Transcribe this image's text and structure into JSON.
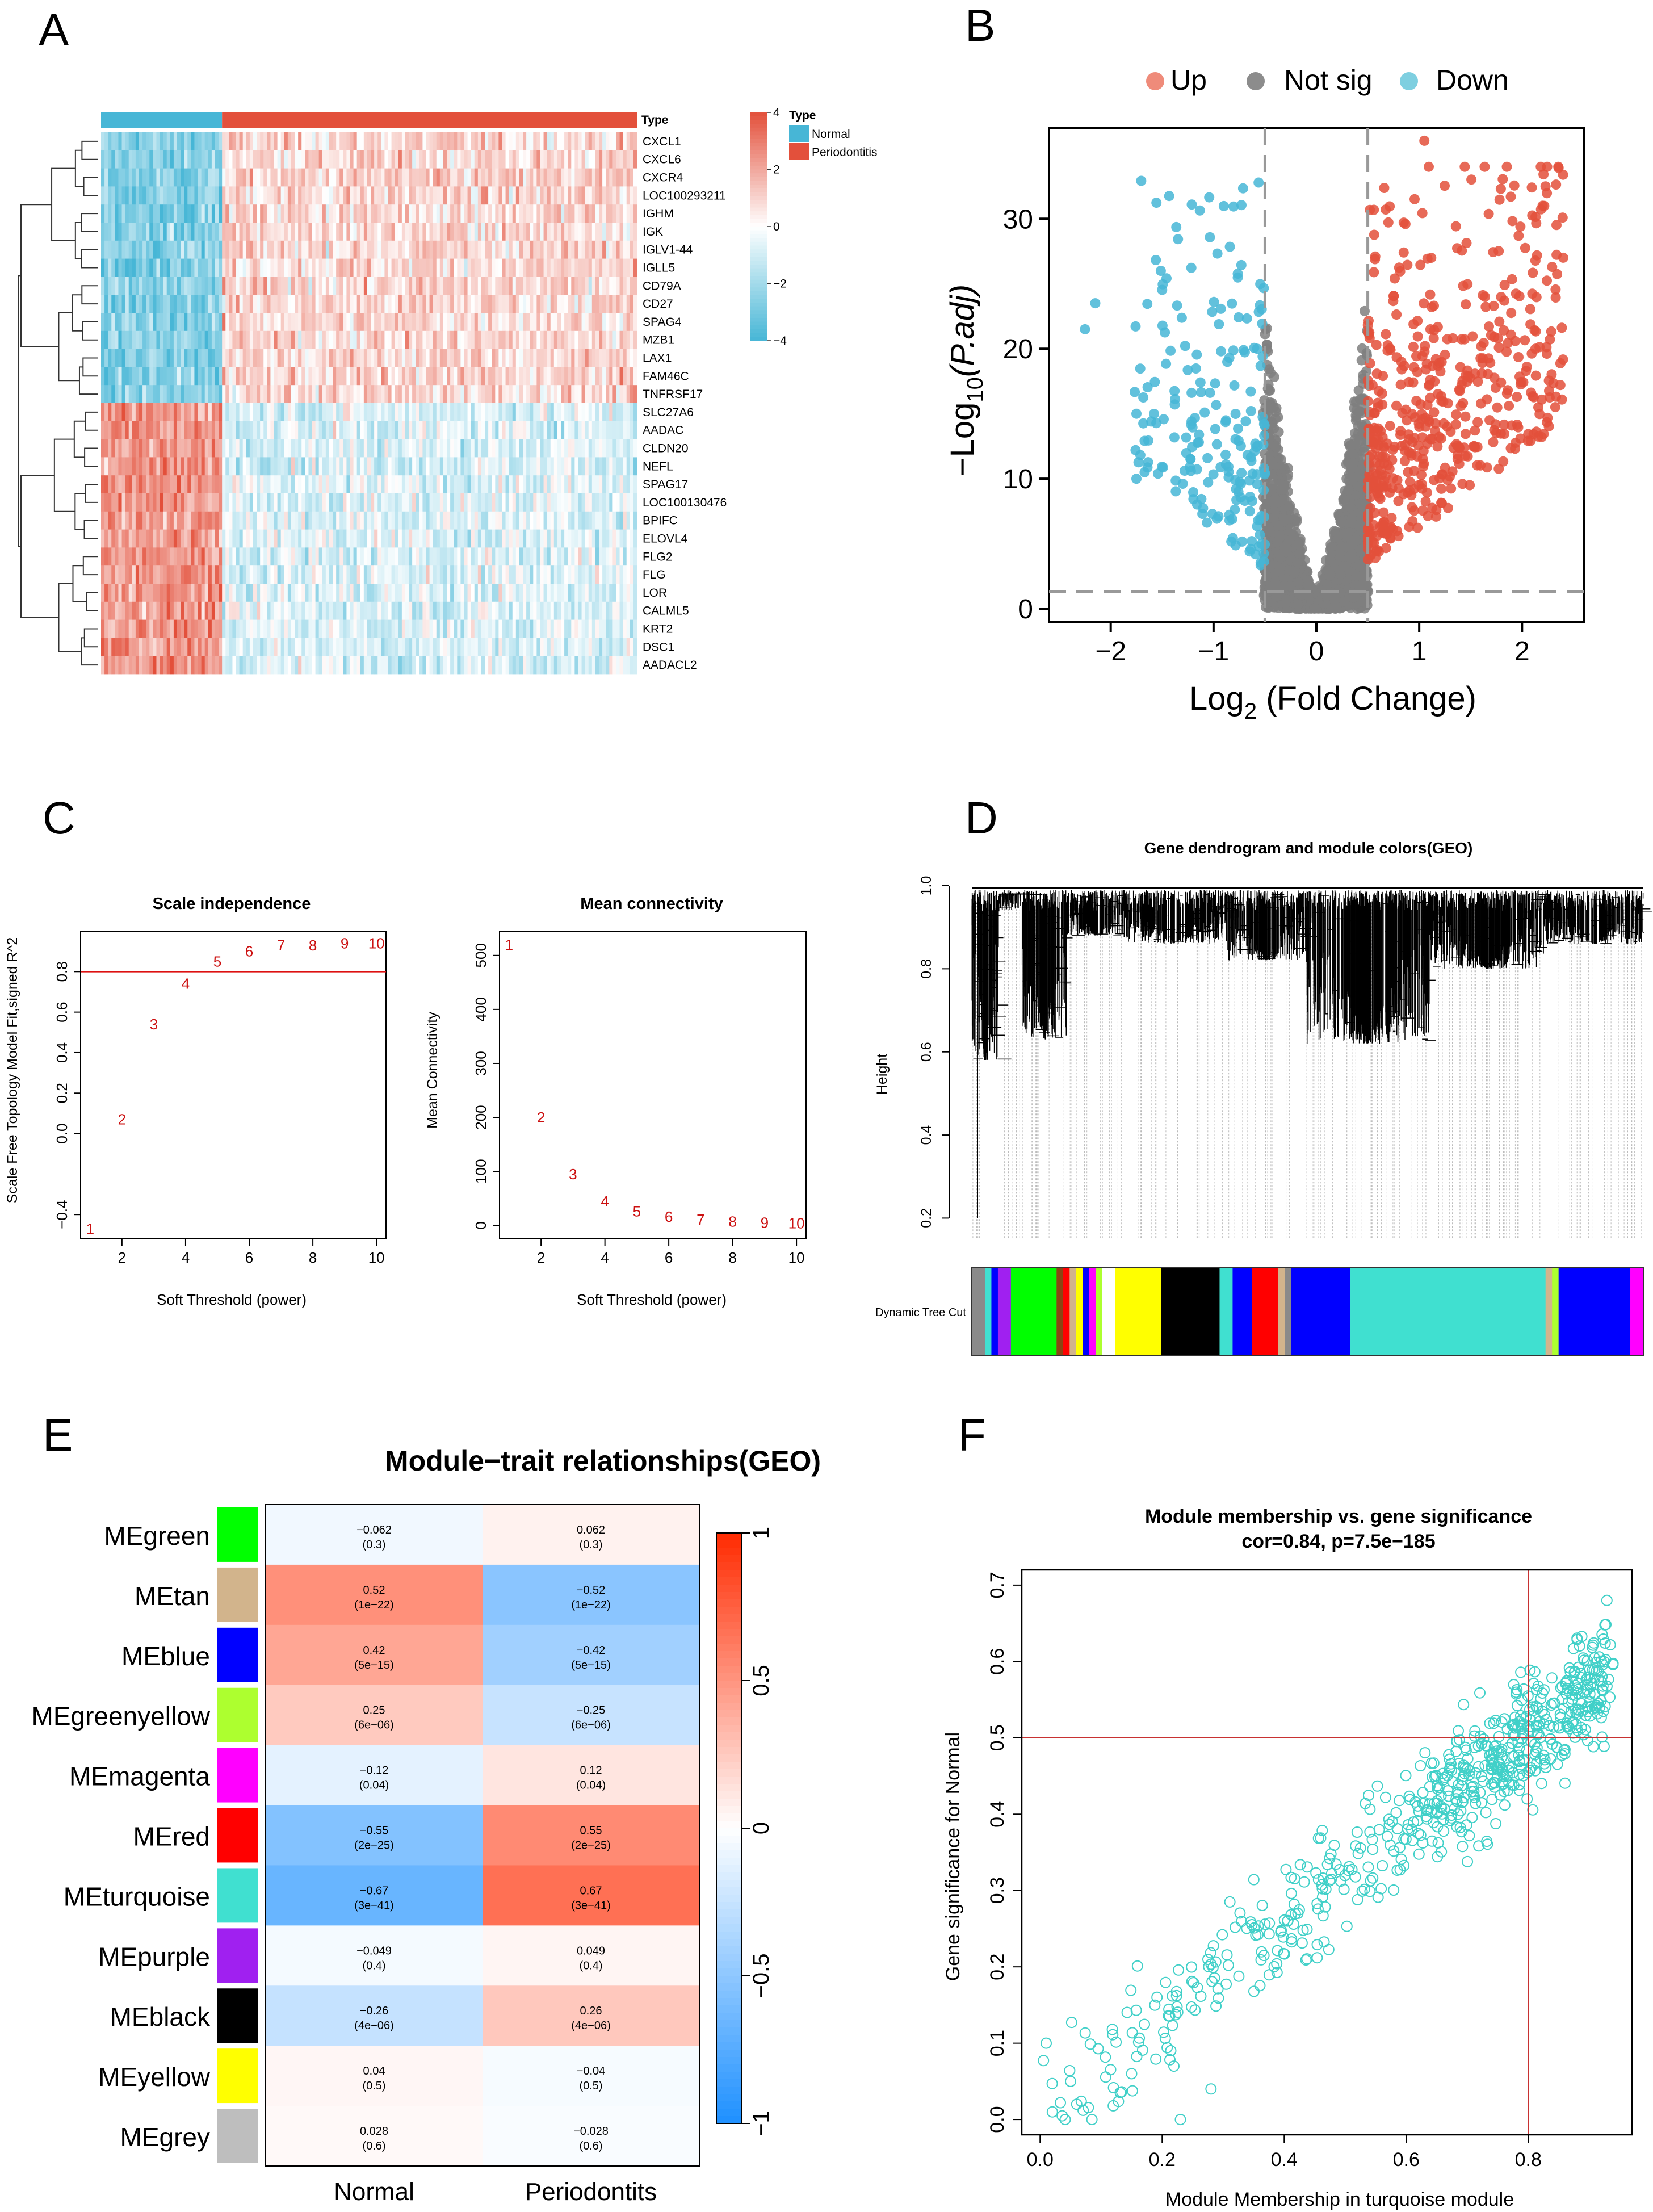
{
  "panel_labels": [
    "A",
    "B",
    "C",
    "D",
    "E",
    "F"
  ],
  "chart_data": [
    {
      "panel": "A",
      "type": "heatmap",
      "annotation_label": "Type",
      "legend_title": "Type",
      "groups": [
        {
          "name": "Normal",
          "color": "#47b6d6",
          "n": 69
        },
        {
          "name": "Periodontitis",
          "color": "#e3503b",
          "n": 241
        }
      ],
      "genes_up_in_periodontitis": [
        "CXCL1",
        "CXCL6",
        "CXCR4",
        "LOC100293211",
        "IGHM",
        "IGK",
        "IGLV1-44",
        "IGLL5",
        "CD79A",
        "CD27",
        "SPAG4",
        "MZB1",
        "LAX1",
        "FAM46C",
        "TNFRSF17"
      ],
      "genes_down_in_periodontitis": [
        "SLC27A6",
        "AADAC",
        "CLDN20",
        "NEFL",
        "SPAG17",
        "LOC100130476",
        "BPIFC",
        "ELOVL4",
        "FLG2",
        "FLG",
        "LOR",
        "CALML5",
        "KRT2",
        "DSC1",
        "AADACL2"
      ],
      "color_scale": {
        "ticks": [
          4,
          2,
          0,
          -2,
          -4
        ],
        "tick_labels": [
          "4",
          "2",
          "0",
          "−2",
          "−4"
        ],
        "high": "#e3503b",
        "mid": "#ffffff",
        "low": "#47b6d6"
      }
    },
    {
      "panel": "B",
      "type": "scatter",
      "legend": [
        {
          "name": "Up",
          "color": "#ef8b7a"
        },
        {
          "name": "Not sig",
          "color": "#8c8c8c"
        },
        {
          "name": "Down",
          "color": "#7ecfe0"
        }
      ],
      "point_colors": {
        "up": "#e3503b",
        "ns": "#7f7f7f",
        "down": "#47b6d6"
      },
      "xlabel_main": "Log",
      "xlabel_sub": "2",
      "xlabel_rest": " (Fold Change)",
      "ylabel_main": "−Log",
      "ylabel_sub": "10",
      "ylabel_rest": "(P.adj)",
      "xlim": [
        -2.6,
        2.6
      ],
      "ylim": [
        -1,
        37
      ],
      "xticks": [
        -2,
        -1,
        0,
        1,
        2
      ],
      "xtick_labels": [
        "−2",
        "−1",
        "0",
        "1",
        "2"
      ],
      "yticks": [
        0,
        10,
        20,
        30
      ],
      "ytick_labels": [
        "0",
        "10",
        "20",
        "30"
      ],
      "thresholds": {
        "logfc": [
          -0.5,
          0.5
        ],
        "y": 1.3
      }
    },
    {
      "panel": "C-left",
      "type": "scatter",
      "title": "Scale independence",
      "xlabel": "Soft Threshold (power)",
      "ylabel": "Scale Free Topology Model Fit,signed R^2",
      "x": [
        1,
        2,
        3,
        4,
        5,
        6,
        7,
        8,
        9,
        10
      ],
      "y": [
        -0.47,
        0.07,
        0.54,
        0.74,
        0.85,
        0.9,
        0.93,
        0.93,
        0.94,
        0.94
      ],
      "xlim": [
        0.7,
        10.3
      ],
      "ylim": [
        -0.52,
        1.0
      ],
      "xticks": [
        2,
        4,
        6,
        8,
        10
      ],
      "yticks": [
        -0.4,
        0.0,
        0.2,
        0.4,
        0.6,
        0.8
      ],
      "ytick_labels": [
        "−0.4",
        "0.0",
        "0.2",
        "0.4",
        "0.6",
        "0.8"
      ],
      "hline": 0.8
    },
    {
      "panel": "C-right",
      "type": "scatter",
      "title": "Mean connectivity",
      "xlabel": "Soft Threshold (power)",
      "ylabel": "Mean Connectivity",
      "x": [
        1,
        2,
        3,
        4,
        5,
        6,
        7,
        8,
        9,
        10
      ],
      "y": [
        520,
        200,
        95,
        45,
        26,
        16,
        11,
        7,
        5,
        4
      ],
      "xlim": [
        0.7,
        10.3
      ],
      "ylim": [
        -25,
        545
      ],
      "xticks": [
        2,
        4,
        6,
        8,
        10
      ],
      "yticks": [
        0,
        100,
        200,
        300,
        400,
        500
      ]
    },
    {
      "panel": "D",
      "type": "dendrogram",
      "title": "Gene dendrogram and module colors(GEO)",
      "ylabel": "Height",
      "ylim": [
        0.15,
        1.0
      ],
      "yticks": [
        0.2,
        0.4,
        0.6,
        0.8,
        1.0
      ],
      "ytick_labels": [
        "0.2",
        "0.4",
        "0.6",
        "0.8",
        "1.0"
      ],
      "color_bar_label": "Dynamic Tree Cut",
      "modules": [
        {
          "color": "#8a8a8a",
          "w": 2
        },
        {
          "color": "#40e0d0",
          "w": 1
        },
        {
          "color": "#0000ff",
          "w": 1
        },
        {
          "color": "#a020f0",
          "w": 2
        },
        {
          "color": "#00ff00",
          "w": 7
        },
        {
          "color": "#8b4513",
          "w": 1
        },
        {
          "color": "#ff0000",
          "w": 1
        },
        {
          "color": "#d2b48c",
          "w": 1
        },
        {
          "color": "#ffff00",
          "w": 1
        },
        {
          "color": "#0000ff",
          "w": 1
        },
        {
          "color": "#ff00ff",
          "w": 1
        },
        {
          "color": "#adff2f",
          "w": 1
        },
        {
          "color": "#ffffff",
          "w": 2
        },
        {
          "color": "#ffff00",
          "w": 7
        },
        {
          "color": "#000000",
          "w": 9
        },
        {
          "color": "#40e0d0",
          "w": 2
        },
        {
          "color": "#0000ff",
          "w": 3
        },
        {
          "color": "#ff0000",
          "w": 4
        },
        {
          "color": "#d2b48c",
          "w": 1
        },
        {
          "color": "#8a8a8a",
          "w": 1
        },
        {
          "color": "#0000ff",
          "w": 9
        },
        {
          "color": "#40e0d0",
          "w": 30
        },
        {
          "color": "#d2b48c",
          "w": 1
        },
        {
          "color": "#adff2f",
          "w": 1
        },
        {
          "color": "#0000ff",
          "w": 11
        },
        {
          "color": "#ff00ff",
          "w": 2
        }
      ]
    },
    {
      "panel": "E",
      "type": "heatmap",
      "title": "Module−trait relationships(GEO)",
      "columns": [
        "Normal",
        "Periodontits"
      ],
      "rows": [
        {
          "name": "MEgreen",
          "color": "#00ff00",
          "values": [
            -0.062,
            0.062
          ],
          "labels": [
            "−0.062",
            "0.062"
          ],
          "pvals": [
            "(0.3)",
            "(0.3)"
          ]
        },
        {
          "name": "MEtan",
          "color": "#d2b48c",
          "values": [
            0.52,
            -0.52
          ],
          "labels": [
            "0.52",
            "−0.52"
          ],
          "pvals": [
            "(1e−22)",
            "(1e−22)"
          ]
        },
        {
          "name": "MEblue",
          "color": "#0000ff",
          "values": [
            0.42,
            -0.42
          ],
          "labels": [
            "0.42",
            "−0.42"
          ],
          "pvals": [
            "(5e−15)",
            "(5e−15)"
          ]
        },
        {
          "name": "MEgreenyellow",
          "color": "#adff2f",
          "values": [
            0.25,
            -0.25
          ],
          "labels": [
            "0.25",
            "−0.25"
          ],
          "pvals": [
            "(6e−06)",
            "(6e−06)"
          ]
        },
        {
          "name": "MEmagenta",
          "color": "#ff00ff",
          "values": [
            -0.12,
            0.12
          ],
          "labels": [
            "−0.12",
            "0.12"
          ],
          "pvals": [
            "(0.04)",
            "(0.04)"
          ]
        },
        {
          "name": "MEred",
          "color": "#ff0000",
          "values": [
            -0.55,
            0.55
          ],
          "labels": [
            "−0.55",
            "0.55"
          ],
          "pvals": [
            "(2e−25)",
            "(2e−25)"
          ]
        },
        {
          "name": "MEturquoise",
          "color": "#40e0d0",
          "values": [
            -0.67,
            0.67
          ],
          "labels": [
            "−0.67",
            "0.67"
          ],
          "pvals": [
            "(3e−41)",
            "(3e−41)"
          ]
        },
        {
          "name": "MEpurple",
          "color": "#a020f0",
          "values": [
            -0.049,
            0.049
          ],
          "labels": [
            "−0.049",
            "0.049"
          ],
          "pvals": [
            "(0.4)",
            "(0.4)"
          ]
        },
        {
          "name": "MEblack",
          "color": "#000000",
          "values": [
            -0.26,
            0.26
          ],
          "labels": [
            "−0.26",
            "0.26"
          ],
          "pvals": [
            "(4e−06)",
            "(4e−06)"
          ]
        },
        {
          "name": "MEyellow",
          "color": "#ffff00",
          "values": [
            0.04,
            -0.04
          ],
          "labels": [
            "0.04",
            "−0.04"
          ],
          "pvals": [
            "(0.5)",
            "(0.5)"
          ]
        },
        {
          "name": "MEgrey",
          "color": "#bebebe",
          "values": [
            0.028,
            -0.028
          ],
          "labels": [
            "0.028",
            "−0.028"
          ],
          "pvals": [
            "(0.6)",
            "(0.6)"
          ]
        }
      ],
      "color_scale": {
        "ticks": [
          1,
          0.5,
          0,
          -0.5,
          -1
        ],
        "tick_labels": [
          "1",
          "0.5",
          "0",
          "−0.5",
          "−1"
        ],
        "high": "#ff2a00",
        "mid": "#ffffff",
        "low": "#1e90ff"
      }
    },
    {
      "panel": "F",
      "type": "scatter",
      "title": "Module membership vs. gene significance",
      "subtitle": "cor=0.84, p=7.5e−185",
      "xlabel": "Module Membership in turquoise module",
      "ylabel": "Gene significance for  Normal",
      "xlim": [
        -0.03,
        0.97
      ],
      "ylim": [
        -0.02,
        0.72
      ],
      "xticks": [
        0.0,
        0.2,
        0.4,
        0.6,
        0.8
      ],
      "xtick_labels": [
        "0.0",
        "0.2",
        "0.4",
        "0.6",
        "0.8"
      ],
      "yticks": [
        0.0,
        0.1,
        0.2,
        0.3,
        0.4,
        0.5,
        0.6,
        0.7
      ],
      "ytick_labels": [
        "0.0",
        "0.1",
        "0.2",
        "0.3",
        "0.4",
        "0.5",
        "0.6",
        "0.7"
      ],
      "vline": 0.8,
      "hline": 0.5,
      "point_color": "#40d0c8",
      "line_color": "#c83232",
      "cor": 0.84
    }
  ]
}
